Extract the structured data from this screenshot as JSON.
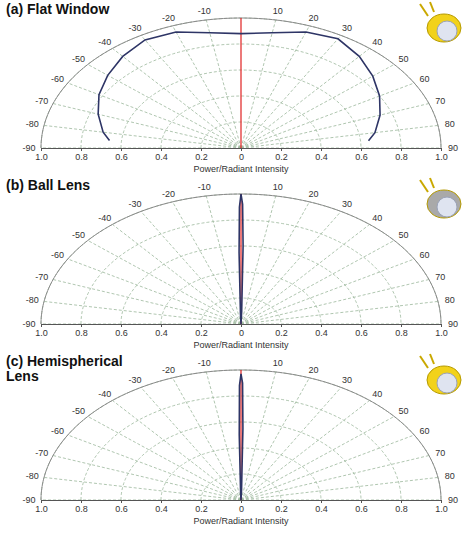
{
  "chart_data": [
    {
      "type": "polar",
      "title": "(a) Flat Window",
      "ylabel": "Power/Radiant Intensity",
      "color": "#2e3566",
      "grid": true,
      "x": [
        -85,
        -80,
        -70,
        -60,
        -50,
        -40,
        -30,
        -20,
        -10,
        0,
        10,
        20,
        30,
        40,
        50,
        60,
        70,
        80,
        85
      ],
      "values": [
        0.66,
        0.7,
        0.76,
        0.82,
        0.87,
        0.92,
        0.96,
        0.95,
        0.9,
        0.88,
        0.9,
        0.95,
        0.97,
        0.92,
        0.86,
        0.8,
        0.74,
        0.68,
        0.64
      ],
      "xlim": [
        -90,
        90
      ],
      "xticks": [
        -90,
        -80,
        -70,
        -60,
        -50,
        -40,
        -30,
        -20,
        -10,
        10,
        20,
        30,
        40,
        50,
        60,
        70,
        80,
        90
      ],
      "ylim": [
        0,
        1
      ],
      "yticks": [
        0,
        0.2,
        0.4,
        0.6,
        0.8,
        {
          "value": 1,
          "label": "1.0"
        }
      ]
    },
    {
      "type": "polar",
      "title": "(b) Ball Lens",
      "ylabel": "Power/Radiant Intensity",
      "color": "#2e3566",
      "grid": true,
      "x": [
        -3,
        -2,
        -1,
        -0.5,
        0,
        0.5,
        1,
        2,
        3
      ],
      "values": [
        0,
        0.08,
        0.55,
        0.9,
        1.0,
        0.92,
        0.6,
        0.1,
        0
      ],
      "xlim": [
        -90,
        90
      ],
      "xticks": [
        -90,
        -80,
        -70,
        -60,
        -50,
        -40,
        -30,
        -20,
        -10,
        10,
        20,
        30,
        40,
        50,
        60,
        70,
        80,
        90
      ],
      "ylim": [
        0,
        1
      ],
      "yticks": [
        0,
        0.2,
        0.4,
        0.6,
        0.8,
        {
          "value": 1,
          "label": "1.0"
        }
      ]
    },
    {
      "type": "polar",
      "title": "(c) Hemispherical Lens",
      "ylabel": "Power/Radiant Intensity",
      "color": "#2e3566",
      "grid": true,
      "x": [
        -3,
        -2,
        -1,
        -0.5,
        0,
        0.5,
        1,
        2,
        3
      ],
      "values": [
        0,
        0.06,
        0.5,
        0.88,
        0.97,
        0.9,
        0.55,
        0.08,
        0
      ],
      "xlim": [
        -90,
        90
      ],
      "xticks": [
        -90,
        -80,
        -70,
        -60,
        -50,
        -40,
        -30,
        -20,
        -10,
        10,
        20,
        30,
        40,
        50,
        60,
        70,
        80,
        90
      ],
      "ylim": [
        0,
        1
      ],
      "yticks": [
        0,
        0.2,
        0.4,
        0.6,
        0.8,
        {
          "value": 1,
          "label": "1.0"
        }
      ]
    }
  ]
}
